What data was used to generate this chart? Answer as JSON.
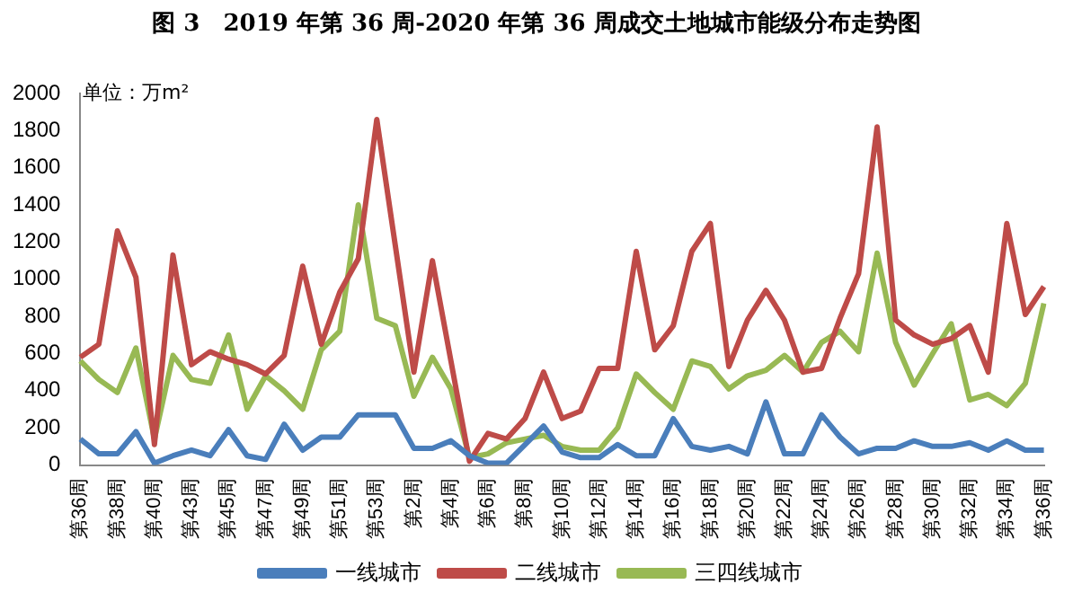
{
  "chart_data": {
    "type": "line",
    "title": "图 3　2019 年第 36 周-2020 年第 36 周成交土地城市能级分布走势图",
    "ylabel": "单位：万m²",
    "categories": [
      "第36周",
      null,
      "第38周",
      null,
      "第40周",
      null,
      "第43周",
      null,
      "第45周",
      null,
      "第47周",
      null,
      "第49周",
      null,
      "第51周",
      null,
      "第53周",
      null,
      "第2周",
      null,
      "第4周",
      null,
      "第6周",
      null,
      "第8周",
      null,
      "第10周",
      null,
      "第12周",
      null,
      "第14周",
      null,
      "第16周",
      null,
      "第18周",
      null,
      "第20周",
      null,
      "第22周",
      null,
      "第24周",
      null,
      "第26周",
      null,
      "第28周",
      null,
      "第30周",
      null,
      "第32周",
      null,
      "第34周",
      null,
      "第36周"
    ],
    "series": [
      {
        "name": "一线城市",
        "color": "#4a7ebb",
        "values": [
          140,
          60,
          60,
          180,
          10,
          50,
          80,
          50,
          190,
          50,
          30,
          220,
          80,
          150,
          150,
          270,
          270,
          270,
          90,
          90,
          130,
          50,
          10,
          10,
          110,
          210,
          70,
          40,
          40,
          110,
          50,
          50,
          250,
          100,
          80,
          100,
          60,
          340,
          60,
          60,
          270,
          150,
          60,
          90,
          90,
          130,
          100,
          100,
          120,
          80,
          130,
          80,
          80
        ]
      },
      {
        "name": "二线城市",
        "color": "#be4b48",
        "values": [
          580,
          650,
          1260,
          1010,
          110,
          1130,
          540,
          610,
          570,
          540,
          490,
          590,
          1070,
          650,
          930,
          1110,
          1860,
          1180,
          500,
          1100,
          560,
          20,
          170,
          140,
          250,
          500,
          250,
          290,
          520,
          520,
          1150,
          620,
          750,
          1150,
          1300,
          530,
          780,
          940,
          780,
          500,
          520,
          790,
          1030,
          1820,
          780,
          700,
          650,
          680,
          750,
          500,
          1300,
          810,
          960
        ]
      },
      {
        "name": "三四线城市",
        "color": "#98b954",
        "values": [
          560,
          460,
          390,
          630,
          140,
          590,
          460,
          440,
          700,
          300,
          480,
          400,
          300,
          620,
          720,
          1400,
          790,
          750,
          370,
          580,
          410,
          40,
          60,
          120,
          140,
          160,
          100,
          80,
          80,
          200,
          490,
          390,
          300,
          560,
          530,
          410,
          480,
          510,
          590,
          500,
          660,
          720,
          610,
          1140,
          660,
          430,
          600,
          760,
          350,
          380,
          320,
          440,
          870
        ]
      }
    ],
    "ylim": [
      0,
      2000
    ],
    "yticks": [
      0,
      200,
      400,
      600,
      800,
      1000,
      1200,
      1400,
      1600,
      1800,
      2000
    ],
    "grid": false,
    "legend": "bottom",
    "marker": "none",
    "line_style": "solid"
  }
}
